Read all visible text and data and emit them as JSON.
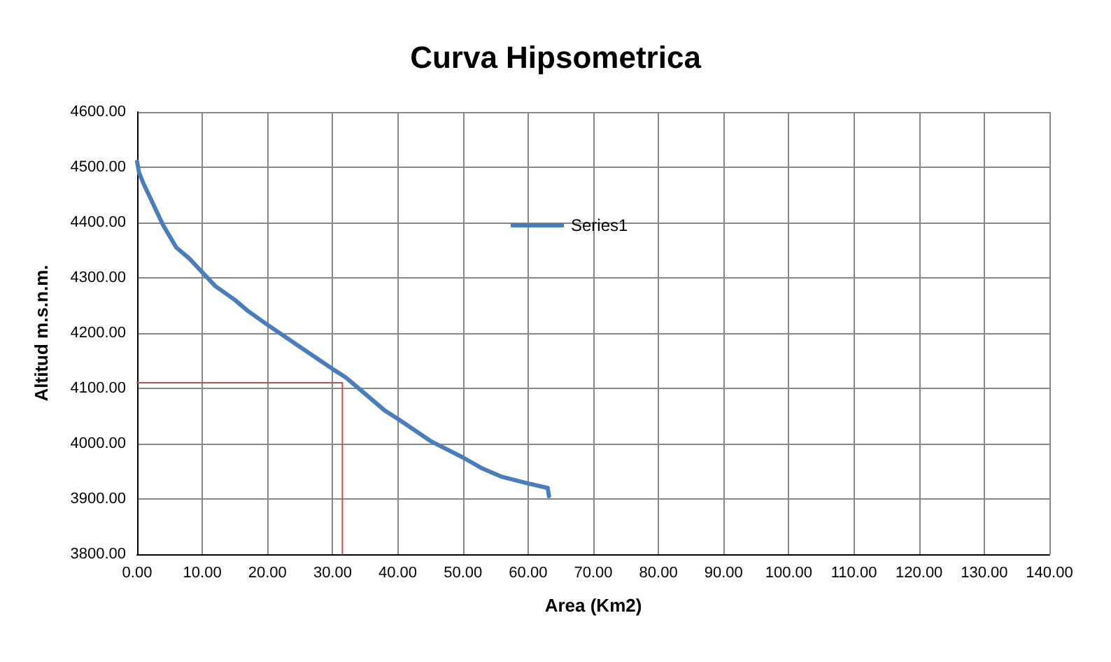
{
  "chart_data": {
    "type": "line",
    "title": "Curva Hipsometrica",
    "xlabel": "Area (Km2)",
    "ylabel": "Altitud m.s.n.m.",
    "series": [
      {
        "name": "Series1",
        "color": "#4a7ebb",
        "x": [
          0,
          0.3,
          1,
          2,
          3,
          4,
          5,
          6,
          8,
          10,
          12,
          15,
          17,
          20,
          25,
          30,
          32,
          35,
          38,
          40,
          45,
          50,
          53,
          56,
          60,
          63,
          63.2
        ],
        "values": [
          4510,
          4490,
          4470,
          4445,
          4420,
          4395,
          4375,
          4355,
          4335,
          4310,
          4285,
          4260,
          4240,
          4215,
          4175,
          4135,
          4120,
          4090,
          4060,
          4045,
          4005,
          3975,
          3955,
          3940,
          3928,
          3920,
          3905
        ]
      },
      {
        "color": "#c0504d",
        "x": [
          0,
          31.5,
          31.5
        ],
        "values": [
          4110,
          4110,
          3800
        ]
      }
    ],
    "xlim": [
      0,
      140
    ],
    "xticks": [
      {
        "value": 0,
        "label": "0.00"
      },
      {
        "value": 10,
        "label": "10.00"
      },
      {
        "value": 20,
        "label": "20.00"
      },
      {
        "value": 30,
        "label": "30.00"
      },
      {
        "value": 40,
        "label": "40.00"
      },
      {
        "value": 50,
        "label": "50.00"
      },
      {
        "value": 60,
        "label": "60.00"
      },
      {
        "value": 70,
        "label": "70.00"
      },
      {
        "value": 80,
        "label": "80.00"
      },
      {
        "value": 90,
        "label": "90.00"
      },
      {
        "value": 100,
        "label": "100.00"
      },
      {
        "value": 110,
        "label": "110.00"
      },
      {
        "value": 120,
        "label": "120.00"
      },
      {
        "value": 130,
        "label": "130.00"
      },
      {
        "value": 140,
        "label": "140.00"
      }
    ],
    "ylim": [
      3800,
      4600
    ],
    "yticks": [
      {
        "value": 3800,
        "label": "3800.00"
      },
      {
        "value": 3900,
        "label": "3900.00"
      },
      {
        "value": 4000,
        "label": "4000.00"
      },
      {
        "value": 4100,
        "label": "4100.00"
      },
      {
        "value": 4200,
        "label": "4200.00"
      },
      {
        "value": 4300,
        "label": "4300.00"
      },
      {
        "value": 4400,
        "label": "4400.00"
      },
      {
        "value": 4500,
        "label": "4500.00"
      },
      {
        "value": 4600,
        "label": "4600.00"
      }
    ],
    "grid": true,
    "legend": "top",
    "marker": "none",
    "line_style": "solid"
  }
}
